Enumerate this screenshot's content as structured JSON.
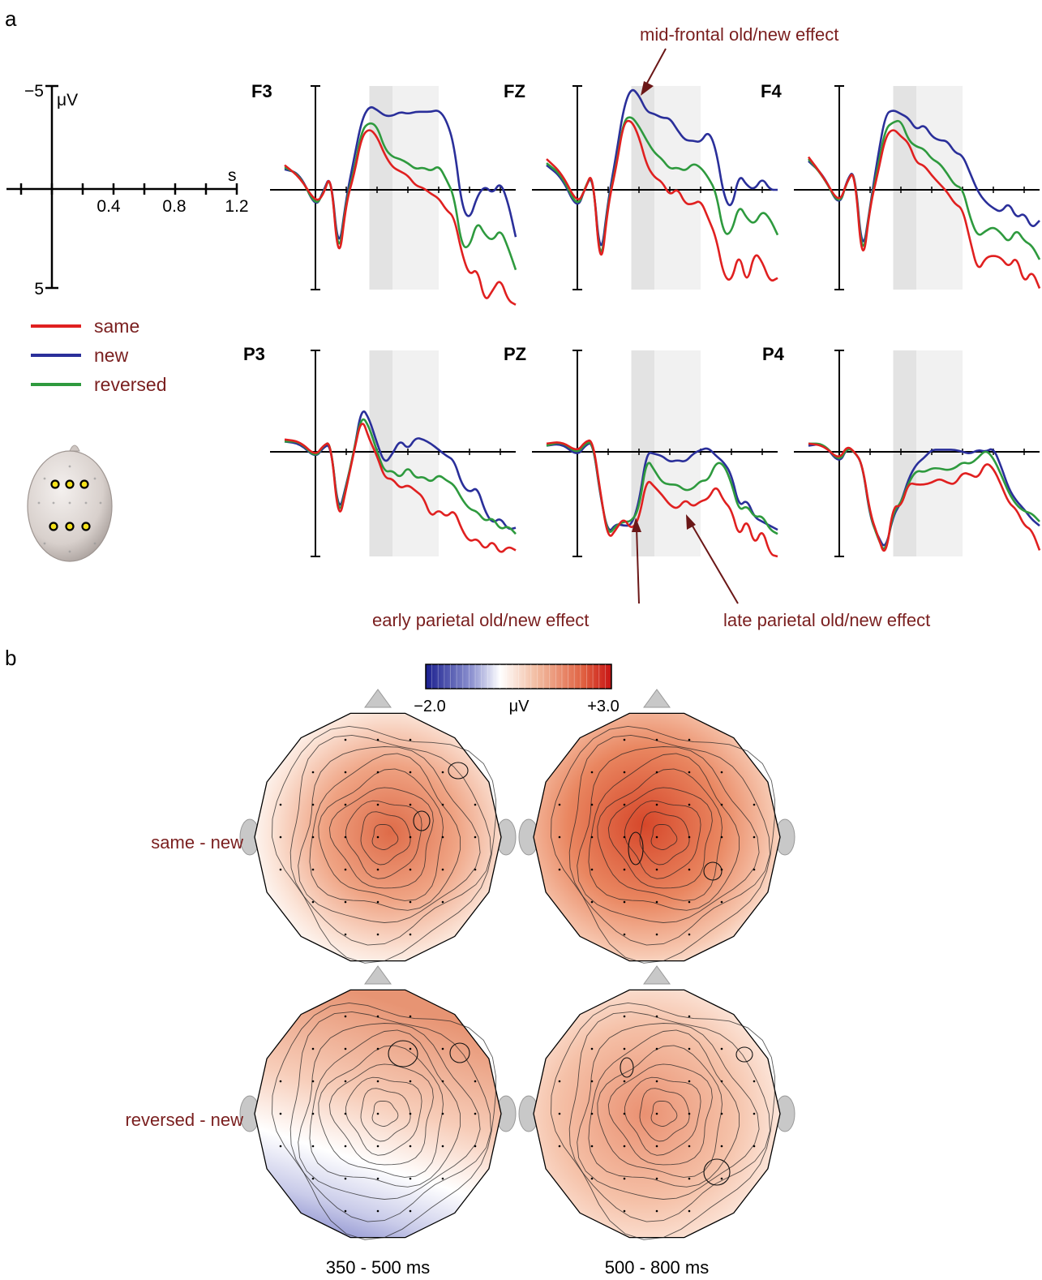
{
  "panels": {
    "a": "a",
    "b": "b"
  },
  "scale_bar": {
    "y_top_label": "−5",
    "y_unit": "μV",
    "y_bottom_label": "5",
    "x_unit": "s",
    "x_ticks": [
      "0.4",
      "0.8",
      "1.2"
    ]
  },
  "legend": [
    {
      "label": "same",
      "color": "#e02020"
    },
    {
      "label": "new",
      "color": "#2a2f9a"
    },
    {
      "label": "reversed",
      "color": "#2e9a3e"
    }
  ],
  "annotations": {
    "mid_frontal": "mid-frontal old/new effect",
    "early_parietal": "early parietal old/new effect",
    "late_parietal": "late parietal old/new effect"
  },
  "colorbar": {
    "min_label": "−2.0",
    "unit_label": "μV",
    "max_label": "+3.0",
    "min": -2.0,
    "max": 3.0
  },
  "topo_rows": [
    "same - new",
    "reversed - new"
  ],
  "topo_cols": [
    "350  - 500 ms",
    "500 - 800 ms"
  ],
  "chart_data": {
    "type": "line",
    "x_unit": "s",
    "y_unit": "μV",
    "negative_up": true,
    "xlim": [
      -0.2,
      1.3
    ],
    "ylim": [
      -5,
      5
    ],
    "shaded_windows": [
      [
        0.35,
        0.5
      ],
      [
        0.5,
        0.8
      ]
    ],
    "series_names": [
      "same",
      "new",
      "reversed"
    ],
    "x": [
      -0.2,
      -0.1,
      0.0,
      0.05,
      0.1,
      0.15,
      0.2,
      0.25,
      0.3,
      0.35,
      0.4,
      0.45,
      0.5,
      0.55,
      0.6,
      0.65,
      0.7,
      0.75,
      0.8,
      0.85,
      0.9,
      0.95,
      1.0,
      1.05,
      1.1,
      1.15,
      1.2,
      1.25,
      1.3
    ],
    "electrodes": [
      {
        "name": "F3",
        "series": [
          [
            -1.2,
            -0.6,
            0.6,
            0.3,
            -0.9,
            3.8,
            0.6,
            -0.7,
            -2.6,
            -3.0,
            -2.6,
            -1.7,
            -1.1,
            -0.9,
            -0.7,
            -0.2,
            -0.1,
            0.2,
            0.4,
            1.0,
            1.3,
            3.1,
            4.2,
            3.8,
            5.5,
            4.9,
            4.3,
            5.4,
            5.6
          ],
          [
            -1.0,
            -0.8,
            0.9,
            0.1,
            -0.8,
            3.2,
            0.4,
            -1.5,
            -3.4,
            -4.1,
            -3.9,
            -3.6,
            -3.6,
            -3.8,
            -3.7,
            -3.8,
            -3.8,
            -3.8,
            -3.9,
            -3.4,
            -2.2,
            0.8,
            1.5,
            0.3,
            -0.2,
            0.2,
            -0.4,
            0.6,
            2.3
          ],
          [
            -1.1,
            -0.7,
            0.8,
            0.2,
            -0.8,
            3.5,
            0.5,
            -0.9,
            -2.9,
            -3.3,
            -3.1,
            -2.0,
            -1.6,
            -1.5,
            -1.3,
            -1.0,
            -1.1,
            -0.9,
            -1.2,
            -0.5,
            0.3,
            2.8,
            2.8,
            1.5,
            2.2,
            2.5,
            1.9,
            2.8,
            3.9
          ]
        ]
      },
      {
        "name": "FZ",
        "series": [
          [
            -1.5,
            -0.8,
            0.7,
            0.0,
            -1.0,
            4.2,
            0.7,
            -1.0,
            -3.3,
            -3.4,
            -2.6,
            -1.2,
            -0.6,
            -0.4,
            0.3,
            -0.1,
            0.7,
            0.7,
            0.5,
            1.4,
            2.3,
            4.2,
            4.5,
            3.0,
            4.7,
            3.0,
            3.5,
            4.5,
            4.3
          ],
          [
            -1.2,
            -0.6,
            1.0,
            -0.1,
            -0.8,
            3.6,
            0.5,
            -1.6,
            -4.0,
            -5.0,
            -4.6,
            -3.8,
            -3.7,
            -3.5,
            -3.5,
            -2.9,
            -2.4,
            -2.4,
            -2.3,
            -2.9,
            -2.0,
            0.3,
            1.0,
            -0.8,
            -0.2,
            0.0,
            -0.6,
            0.0,
            0.0
          ],
          [
            -1.3,
            -0.7,
            0.9,
            -0.1,
            -0.9,
            4.0,
            0.6,
            -1.1,
            -3.4,
            -3.6,
            -3.1,
            -2.4,
            -1.8,
            -1.5,
            -1.0,
            -1.1,
            -0.9,
            -1.3,
            -1.1,
            -0.6,
            0.1,
            2.2,
            2.1,
            0.7,
            1.4,
            1.7,
            1.0,
            1.4,
            2.2
          ]
        ]
      },
      {
        "name": "F4",
        "series": [
          [
            -1.6,
            -0.6,
            0.7,
            -0.4,
            -1.0,
            3.9,
            0.8,
            -0.8,
            -2.6,
            -3.0,
            -2.6,
            -2.3,
            -1.3,
            -1.2,
            -0.7,
            -0.3,
            0.1,
            0.7,
            0.9,
            2.5,
            4.0,
            3.3,
            3.2,
            3.3,
            3.8,
            3.2,
            4.6,
            3.9,
            4.8
          ],
          [
            -1.4,
            -0.7,
            0.9,
            -0.5,
            -1.0,
            3.3,
            0.8,
            -1.6,
            -3.7,
            -3.9,
            -3.7,
            -3.5,
            -2.9,
            -3.2,
            -2.6,
            -2.4,
            -2.4,
            -1.8,
            -1.7,
            -0.8,
            0.1,
            0.6,
            0.9,
            1.1,
            0.6,
            1.4,
            1.1,
            1.9,
            1.5
          ],
          [
            -1.5,
            -0.6,
            0.8,
            -0.4,
            -1.0,
            3.6,
            0.8,
            -1.1,
            -3.0,
            -3.3,
            -3.4,
            -2.4,
            -2.1,
            -2.0,
            -1.5,
            -1.3,
            -0.8,
            -0.2,
            -0.1,
            1.4,
            2.3,
            2.0,
            1.8,
            2.1,
            2.6,
            1.9,
            2.5,
            2.7,
            3.4
          ]
        ]
      },
      {
        "name": "P3",
        "series": [
          [
            -0.6,
            -0.5,
            0.2,
            -0.3,
            -0.5,
            3.5,
            1.8,
            0.0,
            -1.7,
            -0.6,
            0.2,
            1.3,
            1.3,
            1.8,
            1.6,
            1.9,
            2.2,
            3.2,
            2.8,
            3.2,
            2.8,
            3.8,
            4.4,
            4.2,
            4.8,
            4.3,
            5.0,
            4.6,
            4.8
          ],
          [
            -0.5,
            -0.4,
            0.3,
            -0.2,
            -0.4,
            3.1,
            1.6,
            0.0,
            -2.2,
            -1.6,
            -0.4,
            0.6,
            0.1,
            -0.6,
            -0.1,
            -0.7,
            -0.6,
            -0.4,
            -0.1,
            0.2,
            0.4,
            1.6,
            2.0,
            1.7,
            2.9,
            3.5,
            3.2,
            3.8,
            3.7
          ],
          [
            -0.5,
            -0.5,
            0.3,
            -0.3,
            -0.5,
            3.3,
            1.7,
            -0.1,
            -1.8,
            -1.2,
            0.0,
            1.0,
            0.9,
            1.3,
            0.7,
            1.3,
            1.2,
            1.5,
            1.1,
            1.4,
            1.6,
            2.3,
            2.8,
            2.9,
            3.4,
            3.2,
            3.8,
            3.6,
            4.0
          ]
        ]
      },
      {
        "name": "PZ",
        "series": [
          [
            -0.4,
            -0.5,
            0.0,
            -0.5,
            -0.6,
            2.0,
            4.3,
            3.8,
            3.2,
            3.8,
            3.3,
            1.3,
            1.7,
            2.1,
            2.6,
            2.8,
            2.3,
            2.7,
            2.4,
            2.3,
            1.6,
            2.4,
            2.8,
            4.2,
            3.2,
            4.6,
            3.7,
            5.0,
            5.1
          ],
          [
            -0.3,
            -0.4,
            0.2,
            -0.3,
            -0.5,
            2.2,
            4.0,
            3.5,
            3.6,
            3.6,
            2.5,
            0.0,
            0.1,
            0.2,
            0.5,
            0.4,
            0.5,
            0.1,
            -0.1,
            -0.2,
            0.2,
            0.5,
            1.1,
            2.7,
            2.3,
            3.2,
            3.4,
            3.6,
            3.8
          ],
          [
            -0.3,
            -0.5,
            0.1,
            -0.4,
            -0.5,
            2.1,
            4.1,
            3.6,
            3.4,
            3.4,
            2.8,
            0.3,
            0.9,
            1.5,
            1.6,
            1.6,
            1.9,
            1.8,
            1.4,
            1.4,
            0.5,
            0.6,
            1.5,
            2.9,
            2.6,
            3.2,
            3.1,
            3.8,
            4.0
          ]
        ]
      },
      {
        "name": "P4",
        "series": [
          [
            -0.4,
            -0.3,
            0.4,
            -0.3,
            0.0,
            0.6,
            3.0,
            4.1,
            5.2,
            2.6,
            2.7,
            1.5,
            1.6,
            1.6,
            1.5,
            1.3,
            1.5,
            1.6,
            1.0,
            1.1,
            1.3,
            0.5,
            0.8,
            1.6,
            2.5,
            2.8,
            3.6,
            3.8,
            4.8
          ],
          [
            -0.3,
            -0.4,
            0.6,
            -0.2,
            0.0,
            0.6,
            3.2,
            4.1,
            4.8,
            3.1,
            2.5,
            1.3,
            0.6,
            0.3,
            -0.1,
            -0.1,
            -0.1,
            -0.1,
            0.0,
            0.1,
            -0.1,
            0.0,
            -0.2,
            0.7,
            1.8,
            2.4,
            2.8,
            3.3,
            3.6
          ],
          [
            -0.4,
            -0.4,
            0.5,
            -0.2,
            0.0,
            0.6,
            3.1,
            4.2,
            5.0,
            2.9,
            2.5,
            1.5,
            0.9,
            1.0,
            0.8,
            0.8,
            0.9,
            0.8,
            0.5,
            0.6,
            0.3,
            -0.1,
            0.3,
            1.1,
            2.0,
            2.6,
            2.9,
            3.0,
            3.4
          ]
        ]
      }
    ]
  }
}
